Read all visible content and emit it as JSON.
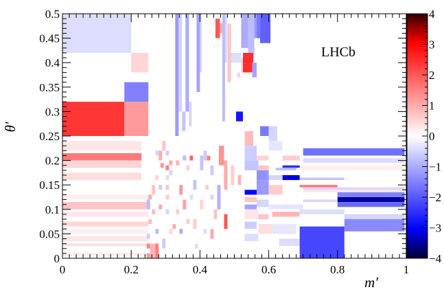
{
  "chart_data": {
    "type": "heatmap",
    "title": "",
    "xlabel": "m'",
    "ylabel": "θ'",
    "xlim": [
      0,
      1
    ],
    "ylim": [
      0,
      0.5
    ],
    "x_ticks": [
      "0",
      "0.2",
      "0.4",
      "0.6",
      "0.8",
      "1"
    ],
    "y_ticks": [
      "0",
      "0.05",
      "0.1",
      "0.15",
      "0.2",
      "0.25",
      "0.3",
      "0.35",
      "0.4",
      "0.45",
      "0.5"
    ],
    "colorbar": {
      "range": [
        -4,
        4
      ],
      "ticks": [
        "−4",
        "−3",
        "−2",
        "−1",
        "0",
        "1",
        "2",
        "3",
        "4"
      ],
      "low_color": "#0000ff",
      "mid_color": "#ffffff",
      "high_color": "#ff0000",
      "min_color": "#000033",
      "max_color": "#330000"
    },
    "annotation": "LHCb",
    "grid": false,
    "cells": [
      {
        "x0": 0.0,
        "x1": 0.2,
        "y0": 0.42,
        "y1": 0.5,
        "v": -0.4
      },
      {
        "x0": 0.0,
        "x1": 0.18,
        "y0": 0.25,
        "y1": 0.32,
        "v": 2.4
      },
      {
        "x0": 0.18,
        "x1": 0.25,
        "y0": 0.25,
        "y1": 0.32,
        "v": 1.2
      },
      {
        "x0": 0.18,
        "x1": 0.25,
        "y0": 0.32,
        "y1": 0.36,
        "v": -1.5
      },
      {
        "x0": 0.2,
        "x1": 0.25,
        "y0": 0.38,
        "y1": 0.42,
        "v": 0.5
      },
      {
        "x0": 0.0,
        "x1": 0.23,
        "y0": 0.22,
        "y1": 0.24,
        "v": 0.3
      },
      {
        "x0": 0.0,
        "x1": 0.23,
        "y0": 0.2,
        "y1": 0.215,
        "v": 1.6
      },
      {
        "x0": 0.0,
        "x1": 0.23,
        "y0": 0.185,
        "y1": 0.2,
        "v": 0.5
      },
      {
        "x0": 0.0,
        "x1": 0.23,
        "y0": 0.16,
        "y1": 0.175,
        "v": 0.4
      },
      {
        "x0": 0.0,
        "x1": 0.25,
        "y0": 0.12,
        "y1": 0.13,
        "v": 0.2
      },
      {
        "x0": 0.0,
        "x1": 0.25,
        "y0": 0.1,
        "y1": 0.115,
        "v": 0.7
      },
      {
        "x0": 0.0,
        "x1": 0.25,
        "y0": 0.085,
        "y1": 0.095,
        "v": 0.3
      },
      {
        "x0": 0.0,
        "x1": 0.25,
        "y0": 0.065,
        "y1": 0.075,
        "v": 0.5
      },
      {
        "x0": 0.0,
        "x1": 0.25,
        "y0": 0.05,
        "y1": 0.06,
        "v": 0.2
      },
      {
        "x0": 0.0,
        "x1": 0.25,
        "y0": 0.035,
        "y1": 0.045,
        "v": 0.3
      },
      {
        "x0": 0.0,
        "x1": 0.25,
        "y0": 0.025,
        "y1": 0.03,
        "v": 0.4
      },
      {
        "x0": 0.0,
        "x1": 0.25,
        "y0": 0.005,
        "y1": 0.012,
        "v": 0.2
      },
      {
        "x0": 0.328,
        "x1": 0.338,
        "y0": 0.25,
        "y1": 0.5,
        "v": -1.2
      },
      {
        "x0": 0.338,
        "x1": 0.348,
        "y0": 0.3,
        "y1": 0.5,
        "v": -0.5
      },
      {
        "x0": 0.358,
        "x1": 0.368,
        "y0": 0.3,
        "y1": 0.5,
        "v": -1.0
      },
      {
        "x0": 0.348,
        "x1": 0.358,
        "y0": 0.26,
        "y1": 0.3,
        "v": -0.7
      },
      {
        "x0": 0.368,
        "x1": 0.376,
        "y0": 0.27,
        "y1": 0.32,
        "v": -0.5
      },
      {
        "x0": 0.39,
        "x1": 0.4,
        "y0": 0.34,
        "y1": 0.5,
        "v": -1.1
      },
      {
        "x0": 0.4,
        "x1": 0.405,
        "y0": 0.38,
        "y1": 0.5,
        "v": -0.5
      },
      {
        "x0": 0.445,
        "x1": 0.458,
        "y0": 0.45,
        "y1": 0.49,
        "v": 2.0
      },
      {
        "x0": 0.458,
        "x1": 0.465,
        "y0": 0.46,
        "y1": 0.48,
        "v": 1.0
      },
      {
        "x0": 0.465,
        "x1": 0.473,
        "y0": 0.28,
        "y1": 0.5,
        "v": -0.8
      },
      {
        "x0": 0.473,
        "x1": 0.478,
        "y0": 0.4,
        "y1": 0.5,
        "v": -0.5
      },
      {
        "x0": 0.48,
        "x1": 0.49,
        "y0": 0.36,
        "y1": 0.48,
        "v": 0.7
      },
      {
        "x0": 0.49,
        "x1": 0.52,
        "y0": 0.4,
        "y1": 0.42,
        "v": -0.4
      },
      {
        "x0": 0.52,
        "x1": 0.54,
        "y0": 0.43,
        "y1": 0.5,
        "v": -1.0
      },
      {
        "x0": 0.52,
        "x1": 0.54,
        "y0": 0.38,
        "y1": 0.41,
        "v": 0.5
      },
      {
        "x0": 0.508,
        "x1": 0.516,
        "y0": 0.37,
        "y1": 0.38,
        "v": 0.6
      },
      {
        "x0": 0.54,
        "x1": 0.558,
        "y0": 0.41,
        "y1": 0.5,
        "v": -0.8
      },
      {
        "x0": 0.525,
        "x1": 0.555,
        "y0": 0.38,
        "y1": 0.42,
        "v": 2.5
      },
      {
        "x0": 0.552,
        "x1": 0.565,
        "y0": 0.37,
        "y1": 0.4,
        "v": -1.1
      },
      {
        "x0": 0.558,
        "x1": 0.565,
        "y0": 0.45,
        "y1": 0.5,
        "v": -1.2
      },
      {
        "x0": 0.565,
        "x1": 0.575,
        "y0": 0.45,
        "y1": 0.5,
        "v": -1.6
      },
      {
        "x0": 0.575,
        "x1": 0.605,
        "y0": 0.44,
        "y1": 0.5,
        "v": -1.9
      },
      {
        "x0": 0.505,
        "x1": 0.525,
        "y0": 0.28,
        "y1": 0.3,
        "v": -2.8
      },
      {
        "x0": 0.53,
        "x1": 0.555,
        "y0": 0.23,
        "y1": 0.26,
        "v": 0.8
      },
      {
        "x0": 0.575,
        "x1": 0.6,
        "y0": 0.25,
        "y1": 0.27,
        "v": -1.6
      },
      {
        "x0": 0.6,
        "x1": 0.625,
        "y0": 0.24,
        "y1": 0.27,
        "v": -0.5
      },
      {
        "x0": 0.53,
        "x1": 0.565,
        "y0": 0.2,
        "y1": 0.23,
        "v": -0.6
      },
      {
        "x0": 0.6,
        "x1": 0.64,
        "y0": 0.22,
        "y1": 0.24,
        "v": -0.3
      },
      {
        "x0": 0.565,
        "x1": 0.6,
        "y0": 0.2,
        "y1": 0.21,
        "v": 0.5
      },
      {
        "x0": 0.64,
        "x1": 0.69,
        "y0": 0.2,
        "y1": 0.21,
        "v": 0.6
      },
      {
        "x0": 0.7,
        "x1": 0.995,
        "y0": 0.21,
        "y1": 0.225,
        "v": -1.7
      },
      {
        "x0": 0.7,
        "x1": 0.995,
        "y0": 0.195,
        "y1": 0.205,
        "v": -0.4
      },
      {
        "x0": 0.69,
        "x1": 0.995,
        "y0": 0.18,
        "y1": 0.19,
        "v": 0.2
      },
      {
        "x0": 0.53,
        "x1": 0.57,
        "y0": 0.18,
        "y1": 0.2,
        "v": -0.7
      },
      {
        "x0": 0.64,
        "x1": 0.69,
        "y0": 0.185,
        "y1": 0.19,
        "v": -2.5
      },
      {
        "x0": 0.62,
        "x1": 0.68,
        "y0": 0.18,
        "y1": 0.185,
        "v": -0.8
      },
      {
        "x0": 0.57,
        "x1": 0.6,
        "y0": 0.18,
        "y1": 0.19,
        "v": 0.7
      },
      {
        "x0": 0.64,
        "x1": 0.69,
        "y0": 0.16,
        "y1": 0.17,
        "v": -3.2
      },
      {
        "x0": 0.565,
        "x1": 0.6,
        "y0": 0.16,
        "y1": 0.18,
        "v": -1.3
      },
      {
        "x0": 0.6,
        "x1": 0.64,
        "y0": 0.16,
        "y1": 0.17,
        "v": -0.5
      },
      {
        "x0": 0.69,
        "x1": 0.82,
        "y0": 0.16,
        "y1": 0.165,
        "v": -0.7
      },
      {
        "x0": 0.69,
        "x1": 0.8,
        "y0": 0.145,
        "y1": 0.15,
        "v": 1.6
      },
      {
        "x0": 0.7,
        "x1": 0.995,
        "y0": 0.14,
        "y1": 0.145,
        "v": -0.5
      },
      {
        "x0": 0.7,
        "x1": 0.995,
        "y0": 0.135,
        "y1": 0.14,
        "v": 0.3
      },
      {
        "x0": 0.53,
        "x1": 0.565,
        "y0": 0.13,
        "y1": 0.14,
        "v": -3.0
      },
      {
        "x0": 0.565,
        "x1": 0.6,
        "y0": 0.13,
        "y1": 0.16,
        "v": -1.2
      },
      {
        "x0": 0.6,
        "x1": 0.64,
        "y0": 0.13,
        "y1": 0.15,
        "v": 0.6
      },
      {
        "x0": 0.8,
        "x1": 0.995,
        "y0": 0.125,
        "y1": 0.135,
        "v": -1.5
      },
      {
        "x0": 0.8,
        "x1": 0.995,
        "y0": 0.115,
        "y1": 0.125,
        "v": -3.5
      },
      {
        "x0": 0.8,
        "x1": 0.995,
        "y0": 0.105,
        "y1": 0.115,
        "v": -1.8
      },
      {
        "x0": 0.7,
        "x1": 0.8,
        "y0": 0.115,
        "y1": 0.12,
        "v": -0.5
      },
      {
        "x0": 0.53,
        "x1": 0.565,
        "y0": 0.115,
        "y1": 0.125,
        "v": 0.7
      },
      {
        "x0": 0.565,
        "x1": 0.6,
        "y0": 0.105,
        "y1": 0.12,
        "v": -0.5
      },
      {
        "x0": 0.53,
        "x1": 0.565,
        "y0": 0.1,
        "y1": 0.11,
        "v": -1.1
      },
      {
        "x0": 0.6,
        "x1": 0.7,
        "y0": 0.1,
        "y1": 0.11,
        "v": -0.3
      },
      {
        "x0": 0.61,
        "x1": 0.69,
        "y0": 0.085,
        "y1": 0.095,
        "v": 0.9
      },
      {
        "x0": 0.53,
        "x1": 0.57,
        "y0": 0.08,
        "y1": 0.1,
        "v": 0.3
      },
      {
        "x0": 0.57,
        "x1": 0.6,
        "y0": 0.08,
        "y1": 0.09,
        "v": 0.7
      },
      {
        "x0": 0.69,
        "x1": 0.82,
        "y0": 0.09,
        "y1": 0.1,
        "v": -0.4
      },
      {
        "x0": 0.82,
        "x1": 0.995,
        "y0": 0.08,
        "y1": 0.09,
        "v": -0.5
      },
      {
        "x0": 0.82,
        "x1": 0.995,
        "y0": 0.055,
        "y1": 0.08,
        "v": -1.4
      },
      {
        "x0": 0.53,
        "x1": 0.565,
        "y0": 0.06,
        "y1": 0.075,
        "v": -0.6
      },
      {
        "x0": 0.57,
        "x1": 0.61,
        "y0": 0.05,
        "y1": 0.07,
        "v": 0.4
      },
      {
        "x0": 0.61,
        "x1": 0.68,
        "y0": 0.05,
        "y1": 0.07,
        "v": -0.3
      },
      {
        "x0": 0.53,
        "x1": 0.57,
        "y0": 0.035,
        "y1": 0.05,
        "v": -0.4
      },
      {
        "x0": 0.63,
        "x1": 0.69,
        "y0": 0.025,
        "y1": 0.04,
        "v": -0.4
      },
      {
        "x0": 0.69,
        "x1": 0.82,
        "y0": 0.0,
        "y1": 0.065,
        "v": -2.2
      },
      {
        "x0": 0.455,
        "x1": 0.47,
        "y0": 0.19,
        "y1": 0.23,
        "v": 1.3
      },
      {
        "x0": 0.47,
        "x1": 0.48,
        "y0": 0.14,
        "y1": 0.2,
        "v": 1.0
      },
      {
        "x0": 0.49,
        "x1": 0.5,
        "y0": 0.15,
        "y1": 0.19,
        "v": 0.6
      },
      {
        "x0": 0.45,
        "x1": 0.46,
        "y0": 0.1,
        "y1": 0.15,
        "v": -0.9
      },
      {
        "x0": 0.51,
        "x1": 0.52,
        "y0": 0.15,
        "y1": 0.17,
        "v": 0.9
      },
      {
        "x0": 0.47,
        "x1": 0.48,
        "y0": 0.06,
        "y1": 0.09,
        "v": 2.0
      },
      {
        "x0": 0.44,
        "x1": 0.45,
        "y0": 0.08,
        "y1": 0.1,
        "v": 0.7
      },
      {
        "x0": 0.4,
        "x1": 0.41,
        "y0": 0.18,
        "y1": 0.21,
        "v": -0.7
      },
      {
        "x0": 0.41,
        "x1": 0.42,
        "y0": 0.2,
        "y1": 0.22,
        "v": -0.6
      },
      {
        "x0": 0.42,
        "x1": 0.43,
        "y0": 0.2,
        "y1": 0.21,
        "v": 1.5
      },
      {
        "x0": 0.37,
        "x1": 0.38,
        "y0": 0.2,
        "y1": 0.21,
        "v": 1.8
      },
      {
        "x0": 0.36,
        "x1": 0.37,
        "y0": 0.18,
        "y1": 0.19,
        "v": 0.6
      },
      {
        "x0": 0.38,
        "x1": 0.39,
        "y0": 0.14,
        "y1": 0.16,
        "v": -0.7
      },
      {
        "x0": 0.34,
        "x1": 0.35,
        "y0": 0.13,
        "y1": 0.15,
        "v": 1.2
      },
      {
        "x0": 0.43,
        "x1": 0.44,
        "y0": 0.17,
        "y1": 0.19,
        "v": -0.6
      },
      {
        "x0": 0.3,
        "x1": 0.31,
        "y0": 0.18,
        "y1": 0.19,
        "v": 1.5
      },
      {
        "x0": 0.28,
        "x1": 0.29,
        "y0": 0.2,
        "y1": 0.22,
        "v": 1.0
      },
      {
        "x0": 0.29,
        "x1": 0.3,
        "y0": 0.22,
        "y1": 0.24,
        "v": 0.7
      },
      {
        "x0": 0.27,
        "x1": 0.28,
        "y0": 0.21,
        "y1": 0.22,
        "v": -0.5
      },
      {
        "x0": 0.3,
        "x1": 0.31,
        "y0": 0.21,
        "y1": 0.22,
        "v": -0.6
      },
      {
        "x0": 0.31,
        "x1": 0.32,
        "y0": 0.19,
        "y1": 0.2,
        "v": 1.0
      },
      {
        "x0": 0.33,
        "x1": 0.34,
        "y0": 0.19,
        "y1": 0.2,
        "v": 0.9
      },
      {
        "x0": 0.35,
        "x1": 0.36,
        "y0": 0.2,
        "y1": 0.21,
        "v": -0.8
      },
      {
        "x0": 0.285,
        "x1": 0.295,
        "y0": 0.185,
        "y1": 0.195,
        "v": 1.2
      },
      {
        "x0": 0.27,
        "x1": 0.28,
        "y0": 0.16,
        "y1": 0.17,
        "v": 0.5
      },
      {
        "x0": 0.3,
        "x1": 0.31,
        "y0": 0.16,
        "y1": 0.17,
        "v": -0.4
      },
      {
        "x0": 0.28,
        "x1": 0.29,
        "y0": 0.14,
        "y1": 0.15,
        "v": -0.6
      },
      {
        "x0": 0.3,
        "x1": 0.31,
        "y0": 0.12,
        "y1": 0.13,
        "v": 0.6
      },
      {
        "x0": 0.26,
        "x1": 0.27,
        "y0": 0.13,
        "y1": 0.15,
        "v": 0.7
      },
      {
        "x0": 0.25,
        "x1": 0.26,
        "y0": 0.12,
        "y1": 0.13,
        "v": 1.0
      },
      {
        "x0": 0.26,
        "x1": 0.27,
        "y0": 0.09,
        "y1": 0.1,
        "v": 0.8
      },
      {
        "x0": 0.28,
        "x1": 0.29,
        "y0": 0.1,
        "y1": 0.11,
        "v": 1.0
      },
      {
        "x0": 0.3,
        "x1": 0.31,
        "y0": 0.09,
        "y1": 0.1,
        "v": -0.5
      },
      {
        "x0": 0.25,
        "x1": 0.26,
        "y0": 0.07,
        "y1": 0.08,
        "v": 0.8
      },
      {
        "x0": 0.27,
        "x1": 0.28,
        "y0": 0.05,
        "y1": 0.06,
        "v": -0.8
      },
      {
        "x0": 0.32,
        "x1": 0.33,
        "y0": 0.06,
        "y1": 0.07,
        "v": 1.0
      },
      {
        "x0": 0.34,
        "x1": 0.35,
        "y0": 0.05,
        "y1": 0.06,
        "v": -1.0
      },
      {
        "x0": 0.33,
        "x1": 0.34,
        "y0": 0.09,
        "y1": 0.1,
        "v": 0.6
      },
      {
        "x0": 0.35,
        "x1": 0.36,
        "y0": 0.1,
        "y1": 0.12,
        "v": 1.1
      },
      {
        "x0": 0.36,
        "x1": 0.37,
        "y0": 0.07,
        "y1": 0.08,
        "v": 0.6
      },
      {
        "x0": 0.38,
        "x1": 0.39,
        "y0": 0.06,
        "y1": 0.08,
        "v": 0.6
      },
      {
        "x0": 0.4,
        "x1": 0.41,
        "y0": 0.1,
        "y1": 0.12,
        "v": 0.5
      },
      {
        "x0": 0.41,
        "x1": 0.42,
        "y0": 0.05,
        "y1": 0.06,
        "v": -0.4
      },
      {
        "x0": 0.43,
        "x1": 0.44,
        "y0": 0.04,
        "y1": 0.06,
        "v": 1.0
      },
      {
        "x0": 0.29,
        "x1": 0.3,
        "y0": 0.02,
        "y1": 0.04,
        "v": -0.6
      },
      {
        "x0": 0.31,
        "x1": 0.32,
        "y0": 0.05,
        "y1": 0.06,
        "v": 0.5
      },
      {
        "x0": 0.245,
        "x1": 0.255,
        "y0": 0.02,
        "y1": 0.03,
        "v": 1.4
      },
      {
        "x0": 0.245,
        "x1": 0.255,
        "y0": 0.0,
        "y1": 0.01,
        "v": 1.2
      },
      {
        "x0": 0.255,
        "x1": 0.27,
        "y0": 0.0,
        "y1": 0.03,
        "v": 0.9
      },
      {
        "x0": 0.27,
        "x1": 0.28,
        "y0": 0.0,
        "y1": 0.03,
        "v": 1.5
      },
      {
        "x0": 0.245,
        "x1": 0.255,
        "y0": 0.1,
        "y1": 0.12,
        "v": -0.8
      },
      {
        "x0": 0.245,
        "x1": 0.255,
        "y0": 0.04,
        "y1": 0.05,
        "v": -0.6
      },
      {
        "x0": 0.43,
        "x1": 0.44,
        "y0": 0.12,
        "y1": 0.13,
        "v": -0.5
      },
      {
        "x0": 0.415,
        "x1": 0.425,
        "y0": 0.14,
        "y1": 0.15,
        "v": 0.6
      },
      {
        "x0": 0.37,
        "x1": 0.38,
        "y0": 0.12,
        "y1": 0.13,
        "v": -0.4
      },
      {
        "x0": 0.3,
        "x1": 0.31,
        "y0": 0.14,
        "y1": 0.15,
        "v": 0.7
      },
      {
        "x0": 0.31,
        "x1": 0.32,
        "y0": 0.17,
        "y1": 0.18,
        "v": -0.5
      },
      {
        "x0": 0.385,
        "x1": 0.395,
        "y0": 0.02,
        "y1": 0.03,
        "v": -0.4
      }
    ]
  }
}
